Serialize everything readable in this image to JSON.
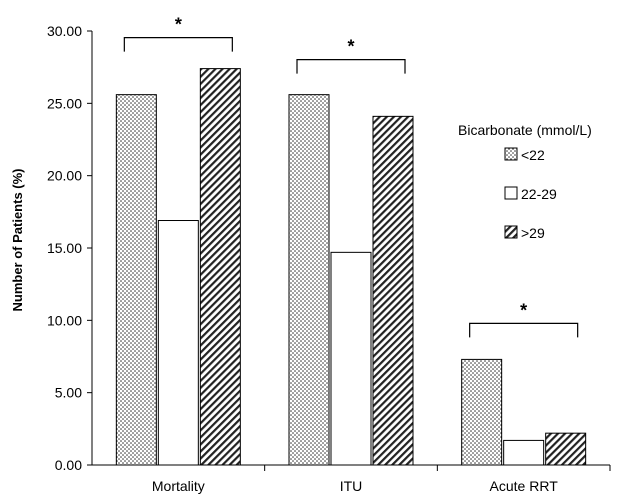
{
  "chart_data": {
    "type": "bar",
    "categories": [
      "Mortality",
      "ITU",
      "Acute RRT"
    ],
    "series": [
      {
        "name": "<22",
        "values": [
          25.6,
          25.6,
          7.3
        ],
        "pattern": "dots"
      },
      {
        "name": "22-29",
        "values": [
          16.9,
          14.7,
          1.7
        ],
        "pattern": "none"
      },
      {
        "name": ">29",
        "values": [
          27.4,
          24.1,
          2.2
        ],
        "pattern": "diagonal"
      }
    ],
    "ylabel": "Number of Patients (%)",
    "xlabel": "",
    "ylim": [
      0,
      30
    ],
    "yticks": [
      "0.00",
      "5.00",
      "10.00",
      "15.00",
      "20.00",
      "25.00",
      "30.00"
    ],
    "legend_title": "Bicarbonate (mmol/L)",
    "legend_position": "right",
    "significance_marker": "*",
    "grid": false
  }
}
